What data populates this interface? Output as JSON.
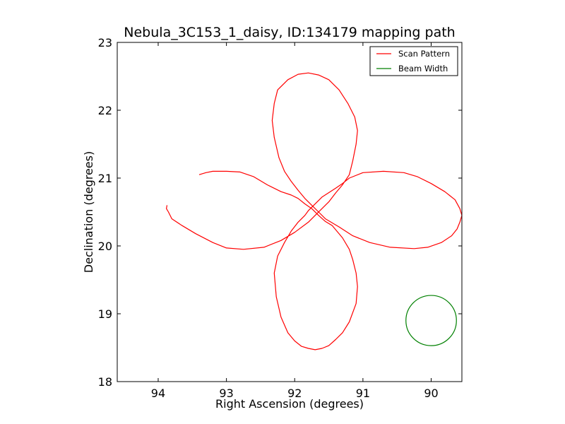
{
  "chart_data": {
    "type": "line",
    "title": "Nebula_3C153_1_daisy, ID:134179 mapping path",
    "xlabel": "Right Ascension (degrees)",
    "ylabel": "Declination (degrees)",
    "xlim": [
      94.6,
      89.55
    ],
    "ylim": [
      18,
      23
    ],
    "x_ticks": [
      94,
      93,
      92,
      91,
      90
    ],
    "y_ticks": [
      18,
      19,
      20,
      21,
      22,
      23
    ],
    "x_tick_labels": [
      "94",
      "93",
      "92",
      "91",
      "90"
    ],
    "y_tick_labels": [
      "18",
      "19",
      "20",
      "21",
      "22",
      "23"
    ],
    "grid": false,
    "legend_position": "top-right",
    "series": [
      {
        "name": "Scan Pattern",
        "color": "#ff0000",
        "x": [
          93.4,
          93.3,
          93.2,
          93.0,
          92.8,
          92.6,
          92.4,
          92.2,
          92.05,
          91.95,
          91.85,
          91.75,
          91.65,
          91.55,
          91.45,
          91.3,
          91.2,
          91.15,
          91.1,
          91.08,
          91.1,
          91.2,
          91.3,
          91.4,
          91.5,
          91.6,
          91.7,
          91.8,
          91.9,
          92.0,
          92.1,
          92.2,
          92.27,
          92.3,
          92.25,
          92.15,
          92.05,
          91.95,
          91.85,
          91.8,
          91.6,
          91.4,
          91.3,
          91.2,
          91.0,
          90.7,
          90.4,
          90.2,
          90.0,
          89.8,
          89.65,
          89.58,
          89.55,
          89.58,
          89.62,
          89.7,
          89.85,
          90.05,
          90.25,
          90.6,
          90.9,
          91.15,
          91.35,
          91.55,
          91.65,
          91.75,
          91.85,
          91.95,
          92.05,
          92.15,
          92.23,
          92.3,
          92.33,
          92.3,
          92.25,
          92.1,
          91.95,
          91.8,
          91.65,
          91.5,
          91.35,
          91.22,
          91.12,
          91.08,
          91.1,
          91.15,
          91.2,
          91.3,
          91.4,
          91.5,
          91.6,
          91.7,
          91.8,
          92.0,
          92.2,
          92.45,
          92.75,
          93.0,
          93.2,
          93.45,
          93.65,
          93.8,
          93.85,
          93.88,
          93.87
        ],
        "y": [
          21.05,
          21.08,
          21.1,
          21.1,
          21.09,
          21.02,
          20.9,
          20.8,
          20.75,
          20.7,
          20.62,
          20.55,
          20.45,
          20.36,
          20.3,
          20.12,
          19.95,
          19.8,
          19.6,
          19.4,
          19.15,
          18.88,
          18.72,
          18.62,
          18.53,
          18.49,
          18.47,
          18.49,
          18.52,
          18.6,
          18.72,
          18.95,
          19.25,
          19.6,
          19.85,
          20.05,
          20.22,
          20.35,
          20.45,
          20.52,
          20.72,
          20.85,
          20.92,
          21.0,
          21.08,
          21.1,
          21.08,
          21.02,
          20.92,
          20.8,
          20.68,
          20.55,
          20.45,
          20.35,
          20.25,
          20.15,
          20.05,
          19.98,
          19.96,
          19.98,
          20.05,
          20.15,
          20.28,
          20.4,
          20.5,
          20.6,
          20.7,
          20.82,
          20.95,
          21.1,
          21.3,
          21.6,
          21.85,
          22.1,
          22.3,
          22.45,
          22.53,
          22.55,
          22.52,
          22.45,
          22.3,
          22.1,
          21.9,
          21.7,
          21.5,
          21.25,
          21.05,
          20.9,
          20.78,
          20.65,
          20.55,
          20.45,
          20.35,
          20.2,
          20.08,
          19.98,
          19.95,
          19.97,
          20.05,
          20.18,
          20.3,
          20.4,
          20.5,
          20.55,
          20.6
        ]
      },
      {
        "name": "Beam Width",
        "color": "#008000",
        "center": [
          90.0,
          18.9
        ],
        "radius": 0.37
      }
    ]
  }
}
